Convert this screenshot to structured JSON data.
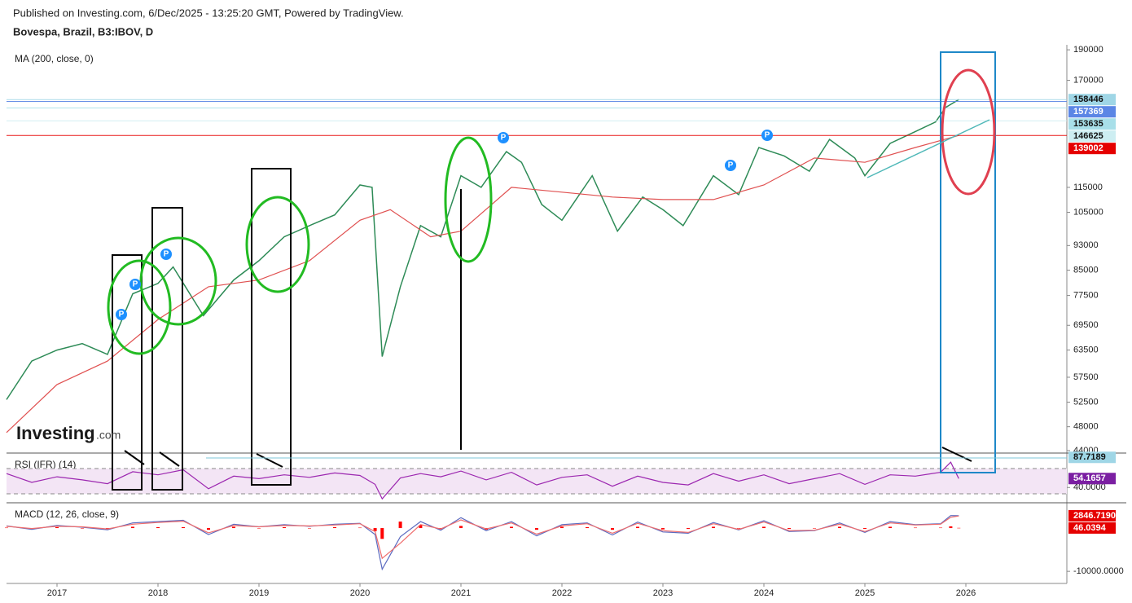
{
  "header": {
    "published": "Published on Investing.com, 6/Dec/2025 - 13:25:20 GMT, Powered by TradingView.",
    "symbol": "Bovespa, Brazil, B3:IBOV, D"
  },
  "watermark": {
    "brand": "Investing",
    "domain": ".com"
  },
  "annotations": {
    "marker": "P"
  },
  "chart_data": [
    {
      "type": "line",
      "title": "MA (200, close, 0)",
      "log_scale": true,
      "xlim": [
        2016.5,
        2027.0
      ],
      "ylim": [
        43600,
        193500
      ],
      "yticks": [
        190000,
        170000,
        115000,
        105000,
        93000,
        85000,
        77500,
        69500,
        63500,
        57500,
        52500,
        48000,
        44000
      ],
      "series": [
        {
          "color": "#2e8b57",
          "x": [
            2016.5,
            2016.75,
            2017,
            2017.25,
            2017.5,
            2017.75,
            2018,
            2018.15,
            2018.45,
            2018.75,
            2019,
            2019.25,
            2019.5,
            2019.75,
            2020,
            2020.12,
            2020.22,
            2020.4,
            2020.6,
            2020.8,
            2021,
            2021.2,
            2021.45,
            2021.6,
            2021.8,
            2022,
            2022.3,
            2022.55,
            2022.8,
            2023,
            2023.2,
            2023.5,
            2023.75,
            2023.95,
            2024.2,
            2024.45,
            2024.65,
            2024.9,
            2025,
            2025.25,
            2025.5,
            2025.7,
            2025.8,
            2025.93
          ],
          "values": [
            53000,
            61000,
            63500,
            65000,
            62500,
            78000,
            81000,
            86000,
            72000,
            82000,
            88000,
            96000,
            100000,
            104000,
            116000,
            115000,
            62000,
            80000,
            100000,
            96000,
            120000,
            115000,
            131000,
            126000,
            108000,
            102000,
            120000,
            98000,
            111000,
            106000,
            100000,
            120000,
            112000,
            133000,
            129000,
            122000,
            137000,
            128000,
            120000,
            135000,
            141000,
            146000,
            154000,
            158446
          ]
        },
        {
          "color": "#e05050",
          "x": [
            2016.5,
            2017,
            2017.5,
            2018,
            2018.5,
            2019,
            2019.5,
            2020,
            2020.3,
            2020.7,
            2021,
            2021.5,
            2022,
            2022.5,
            2023,
            2023.5,
            2024,
            2024.5,
            2025,
            2025.5,
            2025.93
          ],
          "values": [
            47000,
            56000,
            61000,
            71000,
            80000,
            82000,
            88000,
            102000,
            106000,
            96000,
            98000,
            115000,
            113000,
            111000,
            110000,
            110000,
            116000,
            128000,
            126000,
            133000,
            139002
          ]
        }
      ],
      "levels": [
        {
          "value": 158446,
          "color": "#9fd6e6"
        },
        {
          "value": 157369,
          "color": "#5b86e5"
        },
        {
          "value": 153635,
          "color": "#a8dfe9"
        },
        {
          "value": 146625,
          "color": "#cdeef2"
        },
        {
          "value": 139002,
          "color": "#e50000"
        }
      ]
    },
    {
      "type": "line",
      "title": "RSI (IFR) (14)",
      "xlim": [
        2016.5,
        2027.0
      ],
      "ylim": [
        15.8,
        94.5
      ],
      "yticks": [
        {
          "value": 40,
          "label": "40.0000"
        }
      ],
      "bands": [
        30,
        70
      ],
      "band_color": "#f3e5f5",
      "series": [
        {
          "color": "#9c27b0",
          "x": [
            2016.5,
            2016.75,
            2017,
            2017.25,
            2017.5,
            2017.75,
            2018,
            2018.25,
            2018.5,
            2018.75,
            2019,
            2019.25,
            2019.5,
            2019.75,
            2020,
            2020.15,
            2020.22,
            2020.4,
            2020.6,
            2020.8,
            2021,
            2021.25,
            2021.5,
            2021.75,
            2022,
            2022.25,
            2022.5,
            2022.75,
            2023,
            2023.25,
            2023.5,
            2023.75,
            2024,
            2024.25,
            2024.5,
            2024.75,
            2025,
            2025.25,
            2025.5,
            2025.75,
            2025.85,
            2025.93
          ],
          "values": [
            62,
            48,
            57,
            52,
            46,
            65,
            60,
            68,
            38,
            58,
            54,
            60,
            56,
            63,
            59,
            45,
            22,
            55,
            62,
            57,
            66,
            52,
            64,
            44,
            56,
            60,
            42,
            58,
            48,
            44,
            62,
            50,
            60,
            46,
            54,
            62,
            45,
            60,
            58,
            64,
            80,
            54.1657
          ]
        }
      ],
      "levels": [
        {
          "value": 87.7189,
          "color": "#9fd6e6"
        },
        {
          "value": 54.1657,
          "color": "#7b1fa2"
        }
      ]
    },
    {
      "type": "line",
      "title": "MACD (12, 26, close, 9)",
      "xlim": [
        2016.5,
        2027.0
      ],
      "ylim": [
        -12800,
        5850
      ],
      "xticks": [
        2017,
        2018,
        2019,
        2020,
        2021,
        2022,
        2023,
        2024,
        2025,
        2026
      ],
      "yticks": [
        {
          "value": -10000,
          "label": "-10000.0000"
        }
      ],
      "series": [
        {
          "color": "#5c6bc0",
          "x": [
            2016.5,
            2016.75,
            2017,
            2017.25,
            2017.5,
            2017.75,
            2018,
            2018.25,
            2018.5,
            2018.75,
            2019,
            2019.25,
            2019.5,
            2019.75,
            2020,
            2020.15,
            2020.22,
            2020.4,
            2020.6,
            2020.8,
            2021,
            2021.25,
            2021.5,
            2021.75,
            2022,
            2022.25,
            2022.5,
            2022.75,
            2023,
            2023.25,
            2023.5,
            2023.75,
            2024,
            2024.25,
            2024.5,
            2024.75,
            2025,
            2025.25,
            2025.5,
            2025.75,
            2025.85,
            2025.93
          ],
          "values": [
            500,
            -300,
            600,
            200,
            -400,
            1200,
            1500,
            1800,
            -1500,
            900,
            300,
            800,
            400,
            900,
            1100,
            -1500,
            -9500,
            -2000,
            1500,
            -500,
            2400,
            -600,
            1500,
            -1800,
            800,
            1200,
            -1600,
            1400,
            -900,
            -1200,
            1300,
            -400,
            1700,
            -800,
            -600,
            1200,
            -1000,
            1500,
            800,
            1000,
            2900,
            2846.719
          ]
        },
        {
          "color": "#ef6c6c",
          "x": [
            2016.5,
            2016.75,
            2017,
            2017.25,
            2017.5,
            2017.75,
            2018,
            2018.25,
            2018.5,
            2018.75,
            2019,
            2019.25,
            2019.5,
            2019.75,
            2020,
            2020.15,
            2020.22,
            2020.4,
            2020.6,
            2020.8,
            2021,
            2021.25,
            2021.5,
            2021.75,
            2022,
            2022.25,
            2022.5,
            2022.75,
            2023,
            2023.25,
            2023.5,
            2023.75,
            2024,
            2024.25,
            2024.5,
            2024.75,
            2025,
            2025.25,
            2025.5,
            2025.75,
            2025.85,
            2025.93
          ],
          "values": [
            400,
            -100,
            400,
            300,
            -200,
            900,
            1300,
            1600,
            -1100,
            600,
            300,
            600,
            500,
            700,
            1000,
            -800,
            -7000,
            -3500,
            800,
            -200,
            1900,
            -200,
            1200,
            -1400,
            500,
            1000,
            -1200,
            1100,
            -600,
            -1000,
            1000,
            -300,
            1400,
            -600,
            -500,
            900,
            -800,
            1200,
            700,
            900,
            2500,
            2800
          ]
        }
      ],
      "histogram": {
        "color": "#ff0000",
        "x": [
          2016.5,
          2016.75,
          2017,
          2017.25,
          2017.5,
          2017.75,
          2018,
          2018.25,
          2018.5,
          2018.75,
          2019,
          2019.25,
          2019.5,
          2019.75,
          2020,
          2020.15,
          2020.22,
          2020.4,
          2020.6,
          2020.8,
          2021,
          2021.25,
          2021.5,
          2021.75,
          2022,
          2022.25,
          2022.5,
          2022.75,
          2023,
          2023.25,
          2023.5,
          2023.75,
          2024,
          2024.25,
          2024.5,
          2024.75,
          2025,
          2025.25,
          2025.5,
          2025.75,
          2025.85,
          2025.93
        ],
        "values": [
          100,
          -200,
          200,
          -100,
          -200,
          300,
          200,
          200,
          -400,
          300,
          0,
          200,
          -100,
          200,
          100,
          -700,
          -2500,
          1500,
          700,
          -300,
          500,
          -400,
          300,
          -400,
          300,
          200,
          -400,
          300,
          -300,
          -200,
          300,
          -100,
          300,
          -200,
          -100,
          300,
          -200,
          300,
          100,
          100,
          400,
          46.0394
        ]
      },
      "levels": [
        {
          "value": 2846.719,
          "label": "2846.7190",
          "color": "#e50000"
        },
        {
          "value": 46.0394,
          "color": "#e50000"
        }
      ]
    }
  ]
}
